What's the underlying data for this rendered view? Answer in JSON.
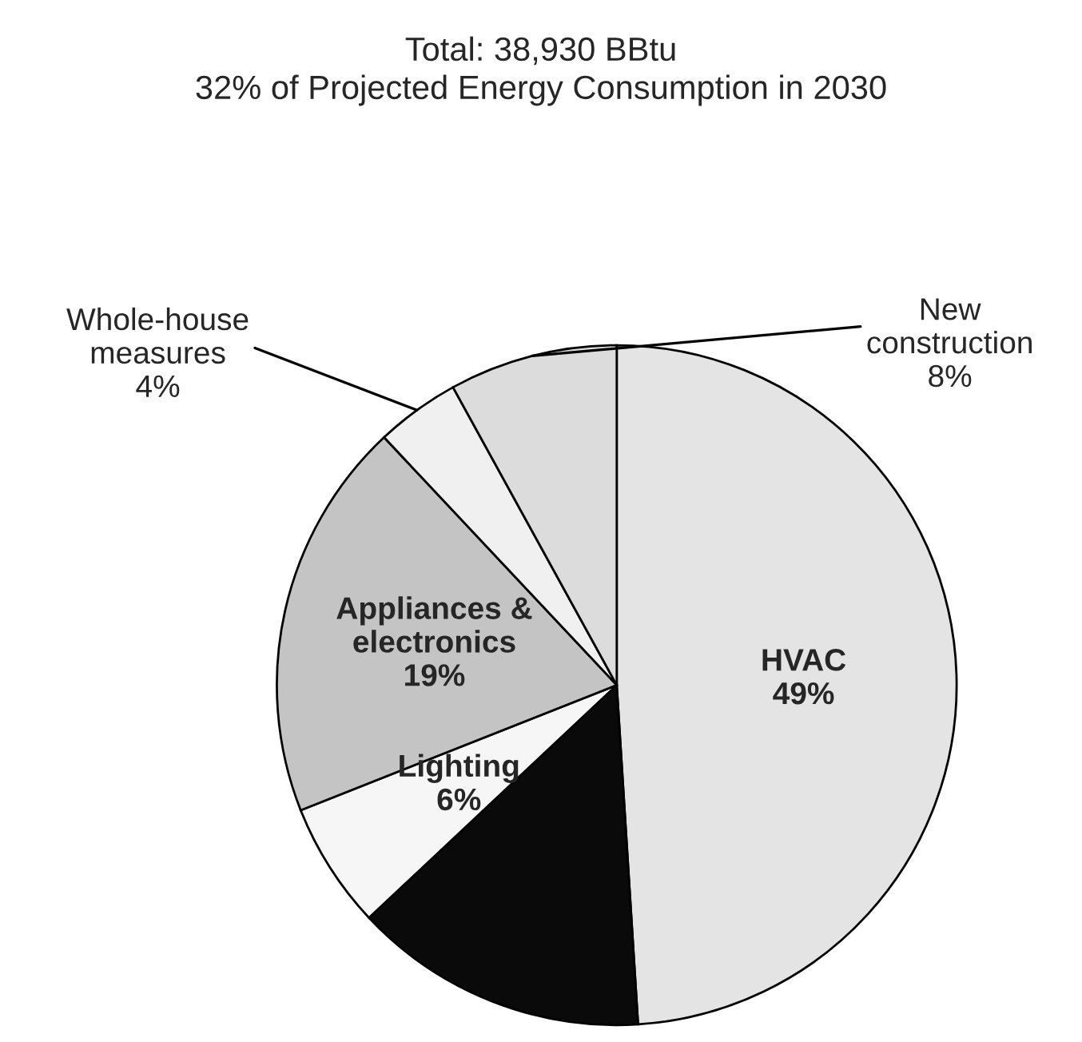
{
  "chart_data": {
    "type": "pie",
    "title": "Total: 38,930 BBtu\n32% of Projected Energy Consumption in 2030",
    "categories": [
      "HVAC",
      null,
      "Lighting",
      "Appliances &\nelectronics",
      "Whole-house\nmeasures",
      "New\nconstruction"
    ],
    "values": [
      49,
      14,
      6,
      19,
      4,
      8
    ],
    "value_labels": [
      "49%",
      null,
      "6%",
      "19%",
      "4%",
      "8%"
    ],
    "colors": [
      "#e4e4e4",
      "#0a0a0a",
      "#f6f6f6",
      "#c4c4c4",
      "#f0f0f0",
      "#dcdcdc"
    ]
  }
}
